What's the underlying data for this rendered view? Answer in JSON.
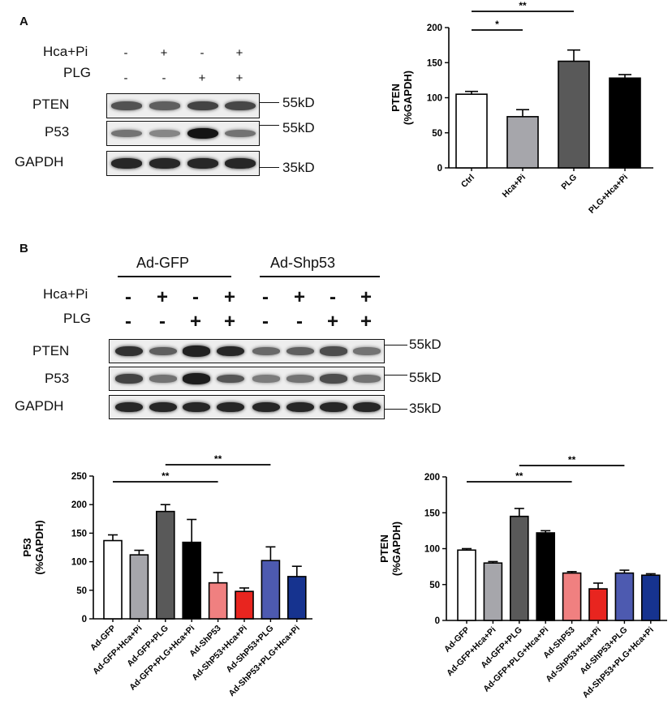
{
  "panel_a_label": "A",
  "panel_b_label": "B",
  "blot_a": {
    "treatments": [
      {
        "label": "Hca+Pi",
        "signs": [
          "-",
          "+",
          "-",
          "+"
        ]
      },
      {
        "label": "PLG",
        "signs": [
          "-",
          "-",
          "+",
          "+"
        ]
      }
    ],
    "rows": [
      {
        "label": "PTEN",
        "mw": "55kD",
        "intensity": [
          0.62,
          0.55,
          0.7,
          0.68
        ]
      },
      {
        "label": "P53",
        "mw": "55kD",
        "intensity": [
          0.45,
          0.35,
          0.95,
          0.45
        ]
      },
      {
        "label": "GAPDH",
        "mw": "35kD",
        "intensity": [
          0.85,
          0.85,
          0.85,
          0.85
        ]
      }
    ]
  },
  "blot_b": {
    "groups": [
      "Ad-GFP",
      "Ad-Shp53"
    ],
    "treatments": [
      {
        "label": "Hca+Pi",
        "signs": [
          "-",
          "+",
          "-",
          "+",
          "-",
          "+",
          "-",
          "+"
        ]
      },
      {
        "label": "PLG",
        "signs": [
          "-",
          "-",
          "+",
          "+",
          "-",
          "-",
          "+",
          "+"
        ]
      }
    ],
    "rows": [
      {
        "label": "PTEN",
        "mw": "55kD",
        "intensity": [
          0.8,
          0.55,
          0.88,
          0.85,
          0.5,
          0.55,
          0.65,
          0.45
        ]
      },
      {
        "label": "P53",
        "mw": "55kD",
        "intensity": [
          0.7,
          0.45,
          0.9,
          0.6,
          0.4,
          0.45,
          0.65,
          0.45
        ]
      },
      {
        "label": "GAPDH",
        "mw": "35kD",
        "intensity": [
          0.85,
          0.85,
          0.85,
          0.85,
          0.85,
          0.85,
          0.85,
          0.85
        ]
      }
    ]
  },
  "colors": {
    "white": "#ffffff",
    "light_gray": "#a6a6ab",
    "dark_gray": "#595959",
    "black": "#000000",
    "pink": "#f08080",
    "red": "#e8251f",
    "blue": "#4d5ab0",
    "navy": "#16338f"
  },
  "chart_data": [
    {
      "type": "bar",
      "categories": [
        "Ctrl",
        "Hca+Pi",
        "PLG",
        "PLG+Hca+Pi"
      ],
      "values": [
        105,
        73,
        152,
        128
      ],
      "errors": [
        4,
        10,
        16,
        5
      ],
      "ylabel": "PTEN\n(%GAPDH)",
      "ylim": [
        0,
        200
      ],
      "yticks": [
        0,
        50,
        100,
        150,
        200
      ],
      "bar_colors": [
        "white",
        "light_gray",
        "dark_gray",
        "black"
      ],
      "significance": [
        {
          "from": 0,
          "to": 1,
          "label": "*"
        },
        {
          "from": 0,
          "to": 2,
          "label": "**"
        }
      ]
    },
    {
      "type": "bar",
      "categories": [
        "Ad-GFP",
        "Ad-GFP+Hca+Pi",
        "Ad-GFP+PLG",
        "Ad-GFP+PLG+Hca+Pi",
        "Ad-ShP53",
        "Ad-ShP53+Hca+Pi",
        "Ad-ShP53+PLG",
        "Ad-ShP53+PLG+Hca+Pi"
      ],
      "values": [
        137,
        112,
        188,
        134,
        63,
        48,
        102,
        74
      ],
      "errors": [
        10,
        8,
        12,
        40,
        18,
        6,
        24,
        18
      ],
      "ylabel": "P53\n(%GAPDH)",
      "ylim": [
        0,
        250
      ],
      "yticks": [
        0,
        50,
        100,
        150,
        200,
        250
      ],
      "bar_colors": [
        "white",
        "light_gray",
        "dark_gray",
        "black",
        "pink",
        "red",
        "blue",
        "navy"
      ],
      "significance": [
        {
          "from": 0,
          "to": 4,
          "label": "**"
        },
        {
          "from": 2,
          "to": 6,
          "label": "**"
        }
      ]
    },
    {
      "type": "bar",
      "categories": [
        "Ad-GFP",
        "Ad-GFP+Hca+Pi",
        "Ad-GFP+PLG",
        "Ad-GFP+PLG+Hca+Pi",
        "Ad-ShP53",
        "Ad-ShP53+Hca+Pi",
        "Ad-ShP53+PLG",
        "Ad-ShP53+PLG+Hca+Pi"
      ],
      "values": [
        98,
        80,
        145,
        122,
        66,
        44,
        66,
        63
      ],
      "errors": [
        2,
        2,
        11,
        3,
        2,
        8,
        4,
        2
      ],
      "ylabel": "PTEN\n(%GAPDH)",
      "ylim": [
        0,
        200
      ],
      "yticks": [
        0,
        50,
        100,
        150,
        200
      ],
      "bar_colors": [
        "white",
        "light_gray",
        "dark_gray",
        "black",
        "pink",
        "red",
        "blue",
        "navy"
      ],
      "significance": [
        {
          "from": 0,
          "to": 4,
          "label": "**"
        },
        {
          "from": 2,
          "to": 6,
          "label": "**"
        }
      ]
    }
  ]
}
